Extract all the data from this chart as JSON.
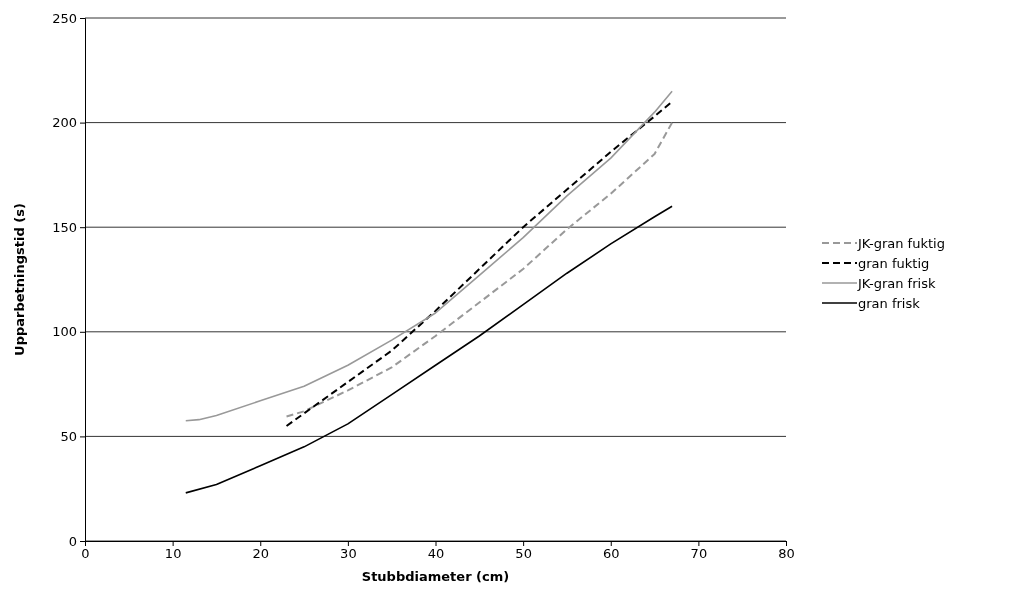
{
  "chart_data": {
    "type": "line",
    "xlabel": "Stubbdiameter (cm)",
    "ylabel": "Upparbetningstid (s)",
    "xlim": [
      0,
      80
    ],
    "xticks": [
      0,
      10,
      20,
      30,
      40,
      50,
      60,
      70,
      80
    ],
    "ylim": [
      0,
      250
    ],
    "yticks": [
      0,
      50,
      100,
      150,
      200,
      250
    ],
    "grid": "y",
    "legend": "right",
    "marker": "none",
    "series": [
      {
        "name": "JK-gran fuktig",
        "color": "#999999",
        "line_style": "dashed",
        "x": [
          23,
          25,
          30,
          35,
          40,
          45,
          50,
          55,
          60,
          65,
          67
        ],
        "values": [
          59.5,
          62,
          72,
          83,
          98,
          114,
          130,
          149,
          166,
          185,
          200
        ]
      },
      {
        "name": "gran fuktig",
        "color": "#000000",
        "line_style": "dashed",
        "x": [
          23,
          25,
          30,
          35,
          40,
          45,
          50,
          55,
          60,
          65,
          67
        ],
        "values": [
          55,
          61,
          76,
          91,
          110,
          130,
          150,
          168,
          186,
          203,
          210
        ]
      },
      {
        "name": "JK-gran frisk",
        "color": "#999999",
        "line_style": "solid",
        "x": [
          11.5,
          13,
          15,
          20,
          25,
          30,
          35,
          40,
          45,
          50,
          55,
          60,
          65,
          67
        ],
        "values": [
          57.5,
          58,
          60,
          67,
          74,
          84,
          96,
          109,
          127,
          145,
          165,
          183,
          205,
          215
        ]
      },
      {
        "name": "gran frisk",
        "color": "#000000",
        "line_style": "solid",
        "x": [
          11.5,
          15,
          20,
          25,
          30,
          35,
          40,
          45,
          50,
          55,
          60,
          65,
          67
        ],
        "values": [
          23,
          27,
          36,
          45,
          56,
          70,
          84,
          98,
          113,
          128,
          142,
          155,
          160
        ]
      }
    ]
  }
}
